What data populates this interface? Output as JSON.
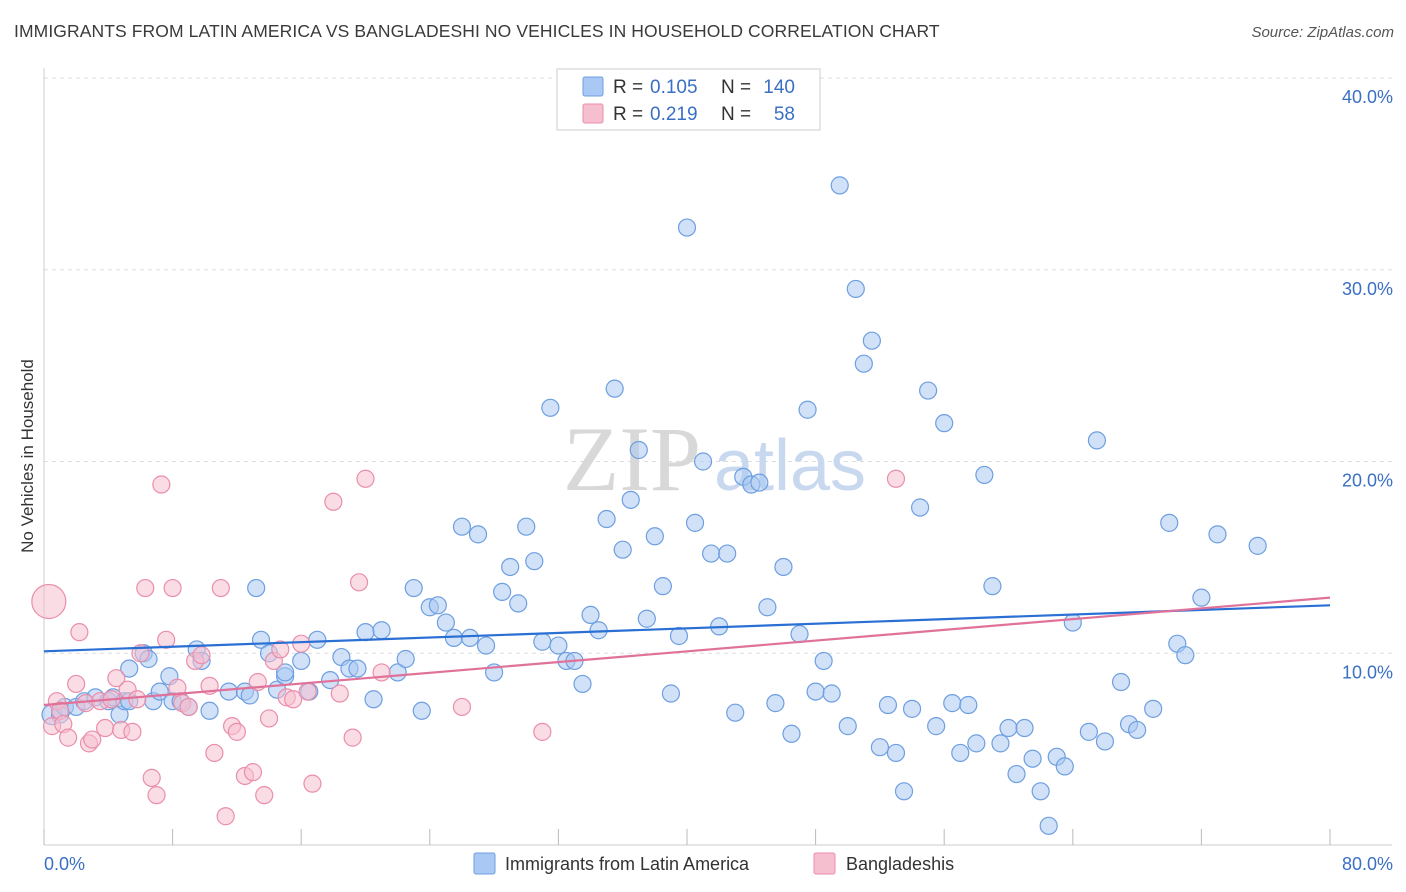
{
  "title": "IMMIGRANTS FROM LATIN AMERICA VS BANGLADESHI NO VEHICLES IN HOUSEHOLD CORRELATION CHART",
  "source": "Source: ZipAtlas.com",
  "watermark": {
    "zip": "ZIP",
    "atlas": "atlas"
  },
  "legend": {
    "rows": [
      {
        "r_label": "R =",
        "r_value": "0.105",
        "n_label": "N =",
        "n_value": "140",
        "color": "#7aaaf0"
      },
      {
        "r_label": "R =",
        "r_value": "0.219",
        "n_label": "N =",
        "n_value": "58",
        "color": "#f0a0b8"
      }
    ]
  },
  "colors": {
    "blue_fill": "#a9c8f3",
    "blue_stroke": "#6e9fe0",
    "blue_line": "#2a6fd4",
    "pink_fill": "#f6bfd0",
    "pink_stroke": "#ea8eab",
    "pink_line": "#e0729a",
    "grid": "#dddddd",
    "axis_label": "#3a6fc4"
  },
  "chart_data": {
    "type": "scatter",
    "title": "IMMIGRANTS FROM LATIN AMERICA VS BANGLADESHI NO VEHICLES IN HOUSEHOLD CORRELATION CHART",
    "xlabel": "",
    "ylabel": "No Vehicles in Household",
    "xlim": [
      0,
      80
    ],
    "ylim": [
      0,
      40
    ],
    "x_tick_labels": [
      "0.0%",
      "80.0%"
    ],
    "y_tick_labels": [
      "10.0%",
      "20.0%",
      "30.0%",
      "40.0%"
    ],
    "y_ticks": [
      10,
      20,
      30,
      40
    ],
    "x_ticks_minor": [
      0,
      8,
      16,
      24,
      32,
      40,
      48,
      56,
      64,
      72,
      80
    ],
    "series": [
      {
        "name": "Immigrants from Latin America",
        "trend": {
          "x": [
            0,
            80
          ],
          "y": [
            10.1,
            12.5
          ]
        },
        "points": [
          [
            0.5,
            6.8
          ],
          [
            1,
            6.8
          ],
          [
            1.3,
            7.2
          ],
          [
            2,
            7.2
          ],
          [
            2.5,
            7.5
          ],
          [
            3.2,
            7.7
          ],
          [
            4,
            7.5
          ],
          [
            4.3,
            7.7
          ],
          [
            4.7,
            6.8
          ],
          [
            5,
            7.5
          ],
          [
            5.3,
            7.5
          ],
          [
            5.3,
            9.2
          ],
          [
            6.2,
            10.0
          ],
          [
            6.5,
            9.7
          ],
          [
            6.8,
            7.5
          ],
          [
            7.2,
            8.0
          ],
          [
            7.8,
            8.8
          ],
          [
            8,
            7.5
          ],
          [
            8.5,
            7.5
          ],
          [
            9,
            7.2
          ],
          [
            9.5,
            10.2
          ],
          [
            9.8,
            9.6
          ],
          [
            10.3,
            7.0
          ],
          [
            11.5,
            8.0
          ],
          [
            12.5,
            8.0
          ],
          [
            12.8,
            7.8
          ],
          [
            13.2,
            13.4
          ],
          [
            13.5,
            10.7
          ],
          [
            14,
            10.0
          ],
          [
            14.5,
            8.1
          ],
          [
            15,
            8.8
          ],
          [
            15,
            9.0
          ],
          [
            16,
            9.6
          ],
          [
            16.5,
            8.0
          ],
          [
            17,
            10.7
          ],
          [
            17.8,
            8.6
          ],
          [
            18.5,
            9.8
          ],
          [
            19,
            9.2
          ],
          [
            19.5,
            9.2
          ],
          [
            20,
            11.1
          ],
          [
            20.5,
            7.6
          ],
          [
            21,
            11.2
          ],
          [
            22,
            9.0
          ],
          [
            22.5,
            9.7
          ],
          [
            23,
            13.4
          ],
          [
            23.5,
            7.0
          ],
          [
            24,
            12.4
          ],
          [
            24.5,
            12.5
          ],
          [
            25,
            11.6
          ],
          [
            25.5,
            10.8
          ],
          [
            26,
            16.6
          ],
          [
            26.5,
            10.8
          ],
          [
            27,
            16.2
          ],
          [
            27.5,
            10.4
          ],
          [
            28,
            9.0
          ],
          [
            28.5,
            13.2
          ],
          [
            29,
            14.5
          ],
          [
            29.5,
            12.6
          ],
          [
            30,
            16.6
          ],
          [
            30.5,
            14.8
          ],
          [
            31,
            10.6
          ],
          [
            31.5,
            22.8
          ],
          [
            32,
            10.4
          ],
          [
            32.5,
            9.6
          ],
          [
            33,
            9.6
          ],
          [
            33.5,
            8.4
          ],
          [
            34,
            12.0
          ],
          [
            34.5,
            11.2
          ],
          [
            35,
            17.0
          ],
          [
            35.5,
            23.8
          ],
          [
            36,
            15.4
          ],
          [
            36.5,
            18.0
          ],
          [
            37,
            20.6
          ],
          [
            37.5,
            11.8
          ],
          [
            38,
            16.1
          ],
          [
            38.5,
            13.5
          ],
          [
            39,
            7.9
          ],
          [
            39.5,
            10.9
          ],
          [
            40,
            32.2
          ],
          [
            40.5,
            16.8
          ],
          [
            41,
            20.0
          ],
          [
            41.5,
            15.2
          ],
          [
            42,
            11.4
          ],
          [
            42.5,
            15.2
          ],
          [
            43,
            6.9
          ],
          [
            43.5,
            19.2
          ],
          [
            44,
            18.8
          ],
          [
            44.5,
            18.9
          ],
          [
            45,
            12.4
          ],
          [
            45.5,
            7.4
          ],
          [
            46,
            14.5
          ],
          [
            46.5,
            5.8
          ],
          [
            47,
            11.0
          ],
          [
            47.5,
            22.7
          ],
          [
            48,
            8.0
          ],
          [
            48.5,
            9.6
          ],
          [
            49,
            7.9
          ],
          [
            49.5,
            34.4
          ],
          [
            50,
            6.2
          ],
          [
            50.5,
            29.0
          ],
          [
            51,
            25.1
          ],
          [
            51.5,
            26.3
          ],
          [
            52,
            5.1
          ],
          [
            52.5,
            7.3
          ],
          [
            53,
            4.8
          ],
          [
            53.5,
            2.8
          ],
          [
            54,
            7.1
          ],
          [
            54.5,
            17.6
          ],
          [
            55,
            23.7
          ],
          [
            55.5,
            6.2
          ],
          [
            56,
            22.0
          ],
          [
            56.5,
            7.4
          ],
          [
            57,
            4.8
          ],
          [
            57.5,
            7.3
          ],
          [
            58,
            5.3
          ],
          [
            58.5,
            19.3
          ],
          [
            59,
            13.5
          ],
          [
            59.5,
            5.3
          ],
          [
            60,
            6.1
          ],
          [
            60.5,
            3.7
          ],
          [
            61,
            6.1
          ],
          [
            61.5,
            4.5
          ],
          [
            62,
            2.8
          ],
          [
            62.5,
            1.0
          ],
          [
            63,
            4.6
          ],
          [
            63.5,
            4.1
          ],
          [
            64,
            11.6
          ],
          [
            65,
            5.9
          ],
          [
            65.5,
            21.1
          ],
          [
            66,
            5.4
          ],
          [
            67,
            8.5
          ],
          [
            67.5,
            6.3
          ],
          [
            68,
            6.0
          ],
          [
            69,
            7.1
          ],
          [
            70,
            16.8
          ],
          [
            70.5,
            10.5
          ],
          [
            71,
            9.9
          ],
          [
            72,
            12.9
          ],
          [
            73,
            16.2
          ],
          [
            75.5,
            15.6
          ]
        ]
      },
      {
        "name": "Bangladeshis",
        "trend": {
          "x": [
            0,
            80
          ],
          "y": [
            7.3,
            12.9
          ]
        },
        "points": [
          [
            0.3,
            12.7
          ],
          [
            0.5,
            6.2
          ],
          [
            0.8,
            7.5
          ],
          [
            1,
            7.0
          ],
          [
            1.2,
            6.3
          ],
          [
            1.5,
            5.6
          ],
          [
            2,
            8.4
          ],
          [
            2.2,
            11.1
          ],
          [
            2.6,
            7.4
          ],
          [
            2.8,
            5.3
          ],
          [
            3,
            5.5
          ],
          [
            3.5,
            7.5
          ],
          [
            3.8,
            6.1
          ],
          [
            4.2,
            7.6
          ],
          [
            4.5,
            8.7
          ],
          [
            4.8,
            6.0
          ],
          [
            5.2,
            8.1
          ],
          [
            5.5,
            5.9
          ],
          [
            5.8,
            7.6
          ],
          [
            6,
            10.0
          ],
          [
            6.3,
            13.4
          ],
          [
            6.7,
            3.5
          ],
          [
            7,
            2.6
          ],
          [
            7.3,
            18.8
          ],
          [
            7.6,
            10.7
          ],
          [
            8,
            13.4
          ],
          [
            8.3,
            8.2
          ],
          [
            8.6,
            7.4
          ],
          [
            9,
            7.2
          ],
          [
            9.4,
            9.6
          ],
          [
            9.8,
            9.9
          ],
          [
            10.3,
            8.3
          ],
          [
            10.6,
            4.8
          ],
          [
            11,
            13.4
          ],
          [
            11.3,
            1.5
          ],
          [
            11.7,
            6.2
          ],
          [
            12,
            5.9
          ],
          [
            12.5,
            3.6
          ],
          [
            13,
            3.8
          ],
          [
            13.3,
            8.5
          ],
          [
            13.7,
            2.6
          ],
          [
            14,
            6.6
          ],
          [
            14.3,
            9.6
          ],
          [
            14.7,
            10.2
          ],
          [
            15.1,
            7.7
          ],
          [
            15.5,
            7.6
          ],
          [
            16,
            10.5
          ],
          [
            16.4,
            8.0
          ],
          [
            16.7,
            3.2
          ],
          [
            18,
            17.9
          ],
          [
            18.4,
            7.9
          ],
          [
            19.2,
            5.6
          ],
          [
            19.6,
            13.7
          ],
          [
            20,
            19.1
          ],
          [
            21,
            9.0
          ],
          [
            26,
            7.2
          ],
          [
            31,
            5.9
          ],
          [
            53,
            19.1
          ]
        ]
      }
    ]
  },
  "bottom_legend": [
    {
      "label": "Immigrants from Latin America",
      "color": "#a9c8f3"
    },
    {
      "label": "Bangladeshis",
      "color": "#f6bfd0"
    }
  ]
}
